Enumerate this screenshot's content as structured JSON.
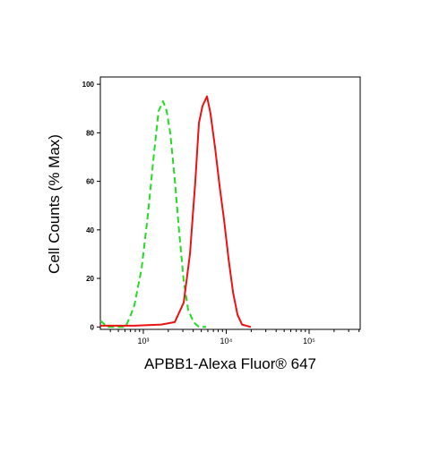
{
  "chart_data": {
    "type": "line",
    "xlabel": "APBB1-Alexa Fluor® 647",
    "ylabel": "Cell Counts (% Max)",
    "xscale": "log",
    "xlim": [
      303,
      413000
    ],
    "ylim": [
      -1,
      103
    ],
    "xticks": [
      {
        "value": 1000,
        "label": "10³"
      },
      {
        "value": 10000,
        "label": "10⁴"
      },
      {
        "value": 100000,
        "label": "10⁵"
      }
    ],
    "xminorticks": [
      400,
      500,
      600,
      700,
      800,
      900,
      2000,
      3000,
      4000,
      5000,
      6000,
      7000,
      8000,
      9000,
      20000,
      30000,
      40000,
      50000,
      60000,
      70000,
      80000,
      90000,
      200000,
      300000,
      400000
    ],
    "yticks": [
      0,
      20,
      40,
      60,
      80,
      100
    ],
    "series": [
      {
        "color": "#22dd22",
        "dash": true,
        "x": [
          303,
          370,
          608,
          689,
          780,
          951,
          1133,
          1348,
          1527,
          1729,
          1910,
          2110,
          2390,
          2705,
          3066,
          3473,
          4030,
          4680,
          5710
        ],
        "values": [
          2.6,
          0,
          0,
          4,
          9,
          24,
          46,
          72,
          89,
          93,
          89,
          80,
          61,
          39,
          19,
          7,
          2,
          0,
          0
        ]
      },
      {
        "color": "#ee1111",
        "dash": false,
        "x": [
          303,
          780,
          1646,
          2390,
          3066,
          3650,
          4240,
          4680,
          5170,
          5850,
          6460,
          7330,
          8320,
          9420,
          10670,
          12100,
          13700,
          15500,
          19840
        ],
        "values": [
          0.5,
          0.5,
          1,
          2,
          10,
          30,
          60,
          84,
          91,
          95,
          88,
          74,
          58,
          44,
          28,
          14,
          5,
          1,
          0
        ]
      }
    ]
  }
}
